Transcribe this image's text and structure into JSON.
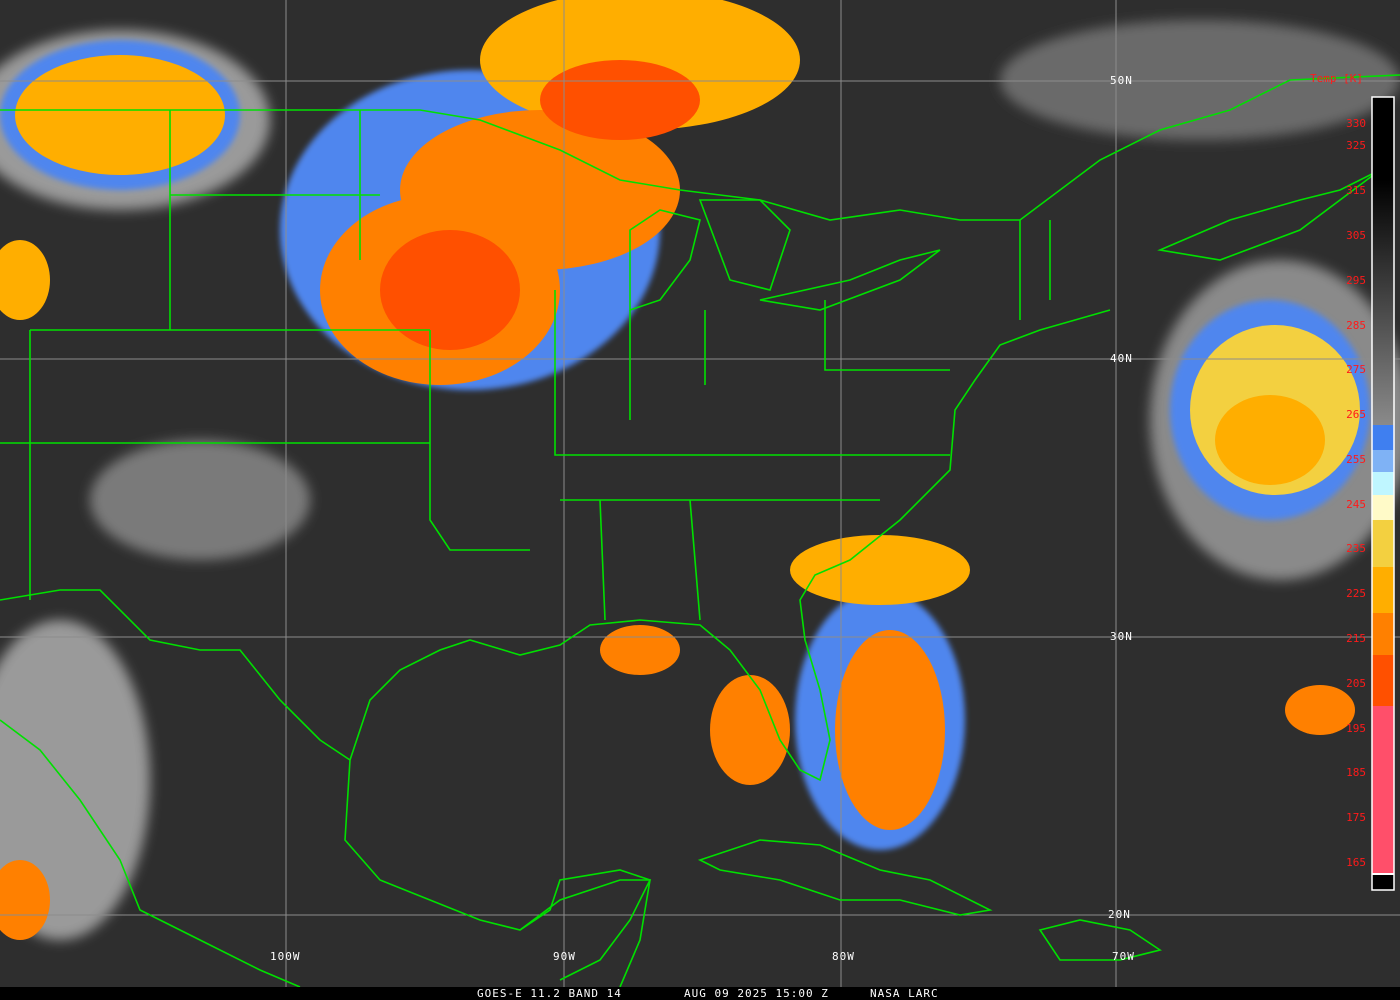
{
  "caption": {
    "satellite": "GOES-E 11.2 BAND 14",
    "datetime": "AUG 09 2025 15:00 Z",
    "credit": "NASA LARC"
  },
  "latitude_labels": [
    "50N",
    "40N",
    "30N",
    "20N"
  ],
  "longitude_labels": [
    "100W",
    "90W",
    "80W",
    "70W"
  ],
  "colorbar": {
    "title": "Temp [K]",
    "ticks": [
      "330",
      "325",
      "315",
      "305",
      "295",
      "285",
      "275",
      "265",
      "255",
      "245",
      "235",
      "225",
      "215",
      "205",
      "195",
      "185",
      "175",
      "165"
    ],
    "colors": {
      "warm_top": "#000000",
      "gray_mid": "#8a8a8a",
      "blue": "#3f7ff0",
      "light_blue": "#7fb2f5",
      "cyan": "#bff6ff",
      "pale_yellow": "#fffac8",
      "yellow": "#f3d040",
      "amber": "#ffae00",
      "orange": "#ff8000",
      "red_orange": "#ff5000",
      "pink": "#ff4f6a"
    }
  },
  "colors": {
    "boundaries": "#00e000",
    "gridlines": "#8c8c8c",
    "labels": "#ffffff",
    "tick_labels": "#ff1a1a"
  }
}
